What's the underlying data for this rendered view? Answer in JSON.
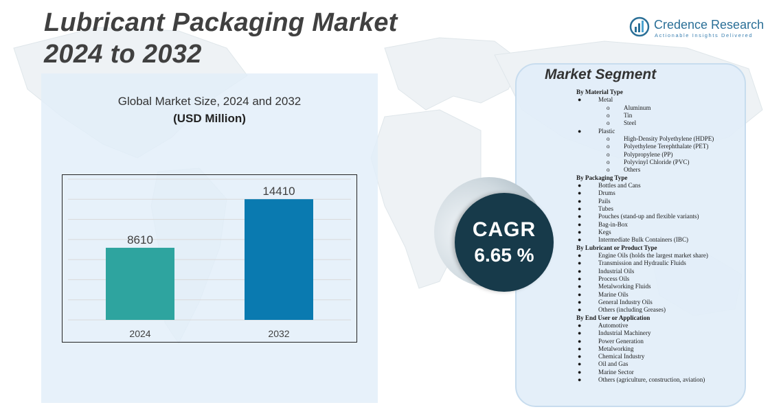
{
  "header": {
    "title_line1": "Lubricant Packaging Market",
    "title_line2": "2024 to 2032"
  },
  "brand": {
    "name": "Credence Research",
    "tagline": "Actionable Insights Delivered",
    "color": "#2a6f97"
  },
  "chart_data": {
    "type": "bar",
    "title": "Global Market Size, 2024 and 2032",
    "subtitle": "(USD Million)",
    "categories": [
      "2024",
      "2032"
    ],
    "values": [
      8610,
      14410
    ],
    "colors": [
      "#2ea49f",
      "#0a7ab0"
    ],
    "ylim": [
      0,
      16800
    ],
    "grid": true,
    "xlabel": "",
    "ylabel": ""
  },
  "cagr": {
    "label": "CAGR",
    "value": "6.65 %"
  },
  "segments": {
    "heading": "Market Segment",
    "categories": [
      {
        "name": "By Material Type",
        "items": [
          {
            "label": "Metal",
            "sub": [
              "Aluminum",
              "Tin",
              "Steel"
            ]
          },
          {
            "label": "Plastic",
            "sub": [
              "High-Density Polyethylene (HDPE)",
              "Polyethylene Terephthalate (PET)",
              "Polypropylene (PP)",
              "Polyvinyl Chloride (PVC)",
              "Others"
            ]
          }
        ]
      },
      {
        "name": "By Packaging Type",
        "items": [
          {
            "label": "Bottles and Cans"
          },
          {
            "label": "Drums"
          },
          {
            "label": "Pails"
          },
          {
            "label": "Tubes"
          },
          {
            "label": "Pouches (stand-up and flexible variants)"
          },
          {
            "label": "Bag-in-Box"
          },
          {
            "label": "Kegs"
          },
          {
            "label": "Intermediate Bulk Containers (IBC)"
          }
        ]
      },
      {
        "name": "By Lubricant or Product Type",
        "items": [
          {
            "label": "Engine Oils (holds the largest market share)"
          },
          {
            "label": "Transmission and Hydraulic Fluids"
          },
          {
            "label": "Industrial Oils"
          },
          {
            "label": "Process Oils"
          },
          {
            "label": "Metalworking Fluids"
          },
          {
            "label": "Marine Oils"
          },
          {
            "label": "General Industry Oils"
          },
          {
            "label": "Others (including Greases)"
          }
        ]
      },
      {
        "name": "By End User or Application",
        "items": [
          {
            "label": "Automotive"
          },
          {
            "label": "Industrial Machinery"
          },
          {
            "label": "Power Generation"
          },
          {
            "label": "Metalworking"
          },
          {
            "label": "Chemical Industry"
          },
          {
            "label": "Oil and Gas"
          },
          {
            "label": "Marine Sector"
          },
          {
            "label": "Others (agriculture, construction, aviation)"
          }
        ]
      }
    ]
  }
}
